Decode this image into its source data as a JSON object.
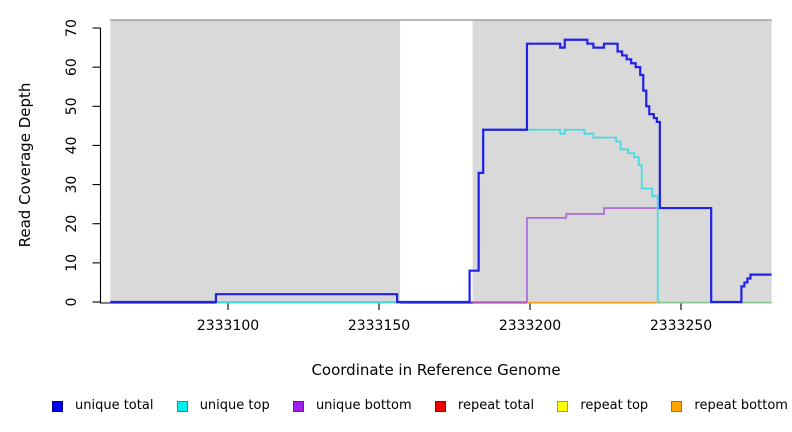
{
  "chart_data": {
    "type": "line",
    "title": "",
    "xlabel": "Coordinate in Reference Genome",
    "ylabel": "Read Coverage Depth",
    "xlim": [
      2333061,
      2333280
    ],
    "ylim": [
      0,
      72
    ],
    "x_ticks": [
      2333100,
      2333150,
      2333200,
      2333250
    ],
    "y_ticks": [
      0,
      10,
      20,
      30,
      40,
      50,
      60,
      70
    ],
    "grid": false,
    "legend_position": "bottom",
    "background": {
      "plot_bg": "#ffffff",
      "shaded_color": "#d9d9d9",
      "shaded_regions": [
        [
          2333061,
          2333157
        ],
        [
          2333181,
          2333280
        ]
      ],
      "unshaded_gap": [
        2333157,
        2333181
      ],
      "top_border_color": "#a0a0a0"
    },
    "series": [
      {
        "name": "unique total",
        "color": "#2121e8",
        "width": 2.2,
        "steps": [
          [
            2333061,
            0
          ],
          [
            2333096,
            2
          ],
          [
            2333156,
            0
          ],
          [
            2333180,
            8
          ],
          [
            2333183,
            33
          ],
          [
            2333184.5,
            44
          ],
          [
            2333199,
            66
          ],
          [
            2333210,
            65
          ],
          [
            2333211.5,
            67
          ],
          [
            2333219,
            66
          ],
          [
            2333221,
            65
          ],
          [
            2333224.5,
            66
          ],
          [
            2333229,
            64
          ],
          [
            2333230.5,
            63
          ],
          [
            2333232,
            62
          ],
          [
            2333233.5,
            61
          ],
          [
            2333235,
            60
          ],
          [
            2333236.5,
            58
          ],
          [
            2333237.5,
            54
          ],
          [
            2333238.5,
            50
          ],
          [
            2333239.5,
            48
          ],
          [
            2333241,
            47
          ],
          [
            2333242,
            46
          ],
          [
            2333243,
            24
          ],
          [
            2333260,
            0
          ],
          [
            2333270,
            4
          ],
          [
            2333271,
            5
          ],
          [
            2333272,
            6
          ],
          [
            2333273,
            7
          ],
          [
            2333280,
            7
          ]
        ]
      },
      {
        "name": "unique top",
        "color": "#41dce8",
        "width": 1.8,
        "steps": [
          [
            2333061,
            0
          ],
          [
            2333180,
            8
          ],
          [
            2333183,
            33
          ],
          [
            2333184.5,
            44
          ],
          [
            2333210,
            43
          ],
          [
            2333211.5,
            44
          ],
          [
            2333218,
            43
          ],
          [
            2333221,
            42
          ],
          [
            2333228.5,
            41
          ],
          [
            2333230,
            39
          ],
          [
            2333232.5,
            38
          ],
          [
            2333234.5,
            37
          ],
          [
            2333236,
            35
          ],
          [
            2333237,
            29
          ],
          [
            2333240.5,
            27
          ],
          [
            2333242.3,
            0
          ],
          [
            2333243,
            0
          ]
        ]
      },
      {
        "name": "unique bottom",
        "color": "#ab62e3",
        "width": 1.6,
        "steps": [
          [
            2333061,
            0
          ],
          [
            2333096,
            2
          ],
          [
            2333156,
            0
          ],
          [
            2333199,
            21.5
          ],
          [
            2333212,
            22.5
          ],
          [
            2333224.5,
            24
          ],
          [
            2333260,
            0
          ],
          [
            2333270,
            4
          ],
          [
            2333271,
            5
          ],
          [
            2333272,
            6
          ],
          [
            2333273,
            7
          ],
          [
            2333280,
            7
          ]
        ]
      }
    ],
    "baseline_segments": [
      {
        "name": "zero segment green left",
        "color": "#8cc88c",
        "x": [
          2333096,
          2333157
        ]
      },
      {
        "name": "repeat total zero segment",
        "color": "#cd2f2f",
        "x": [
          2333181,
          2333199
        ]
      },
      {
        "name": "repeat bottom zero segment",
        "color": "#ff9b1e",
        "x": [
          2333199,
          2333243
        ]
      },
      {
        "name": "zero segment green right",
        "color": "#8cc88c",
        "x": [
          2333243,
          2333280
        ]
      }
    ]
  },
  "legend": [
    {
      "label": "unique total",
      "color": "#0000EE",
      "border": "#0000A0"
    },
    {
      "label": "unique top",
      "color": "#00EEEE",
      "border": "#009BA0"
    },
    {
      "label": "unique bottom",
      "color": "#A020F0",
      "border": "#6F16A8"
    },
    {
      "label": "repeat total",
      "color": "#EE0000",
      "border": "#A00000"
    },
    {
      "label": "repeat top",
      "color": "#FFFF00",
      "border": "#AFA000"
    },
    {
      "label": "repeat bottom",
      "color": "#FFA500",
      "border": "#B07000"
    }
  ]
}
